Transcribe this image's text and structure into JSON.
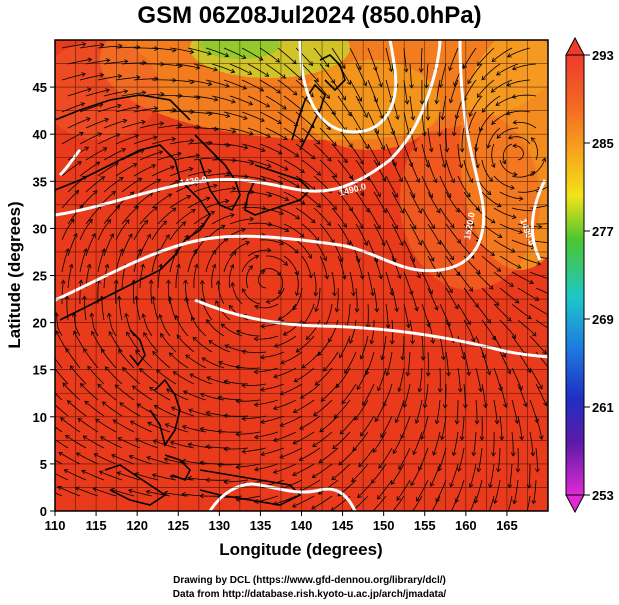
{
  "title": "GSM 06Z08Jul2024 (850.0hPa)",
  "axes": {
    "xlabel": "Longitude (degrees)",
    "ylabel": "Latitude  (degrees)",
    "xticks": [
      "110",
      "115",
      "120",
      "125",
      "130",
      "135",
      "140",
      "145",
      "150",
      "155",
      "160",
      "165"
    ],
    "yticks": [
      "0",
      "5",
      "10",
      "15",
      "20",
      "25",
      "30",
      "35",
      "40",
      "45"
    ],
    "xlim": [
      110,
      170
    ],
    "ylim": [
      0,
      50
    ]
  },
  "colorbar": {
    "labels": [
      "293",
      "285",
      "277",
      "269",
      "261",
      "253"
    ],
    "range": [
      253,
      293
    ]
  },
  "contour_labels": [
    "1430.0",
    "1490.0",
    "1520.0",
    "1490.0"
  ],
  "credits": {
    "line1": "Drawing by DCL (https://www.gfd-dennou.org/library/dcl/)",
    "line2": "Data from http://database.rish.kyoto-u.ac.jp/arch/jmadata/"
  }
}
